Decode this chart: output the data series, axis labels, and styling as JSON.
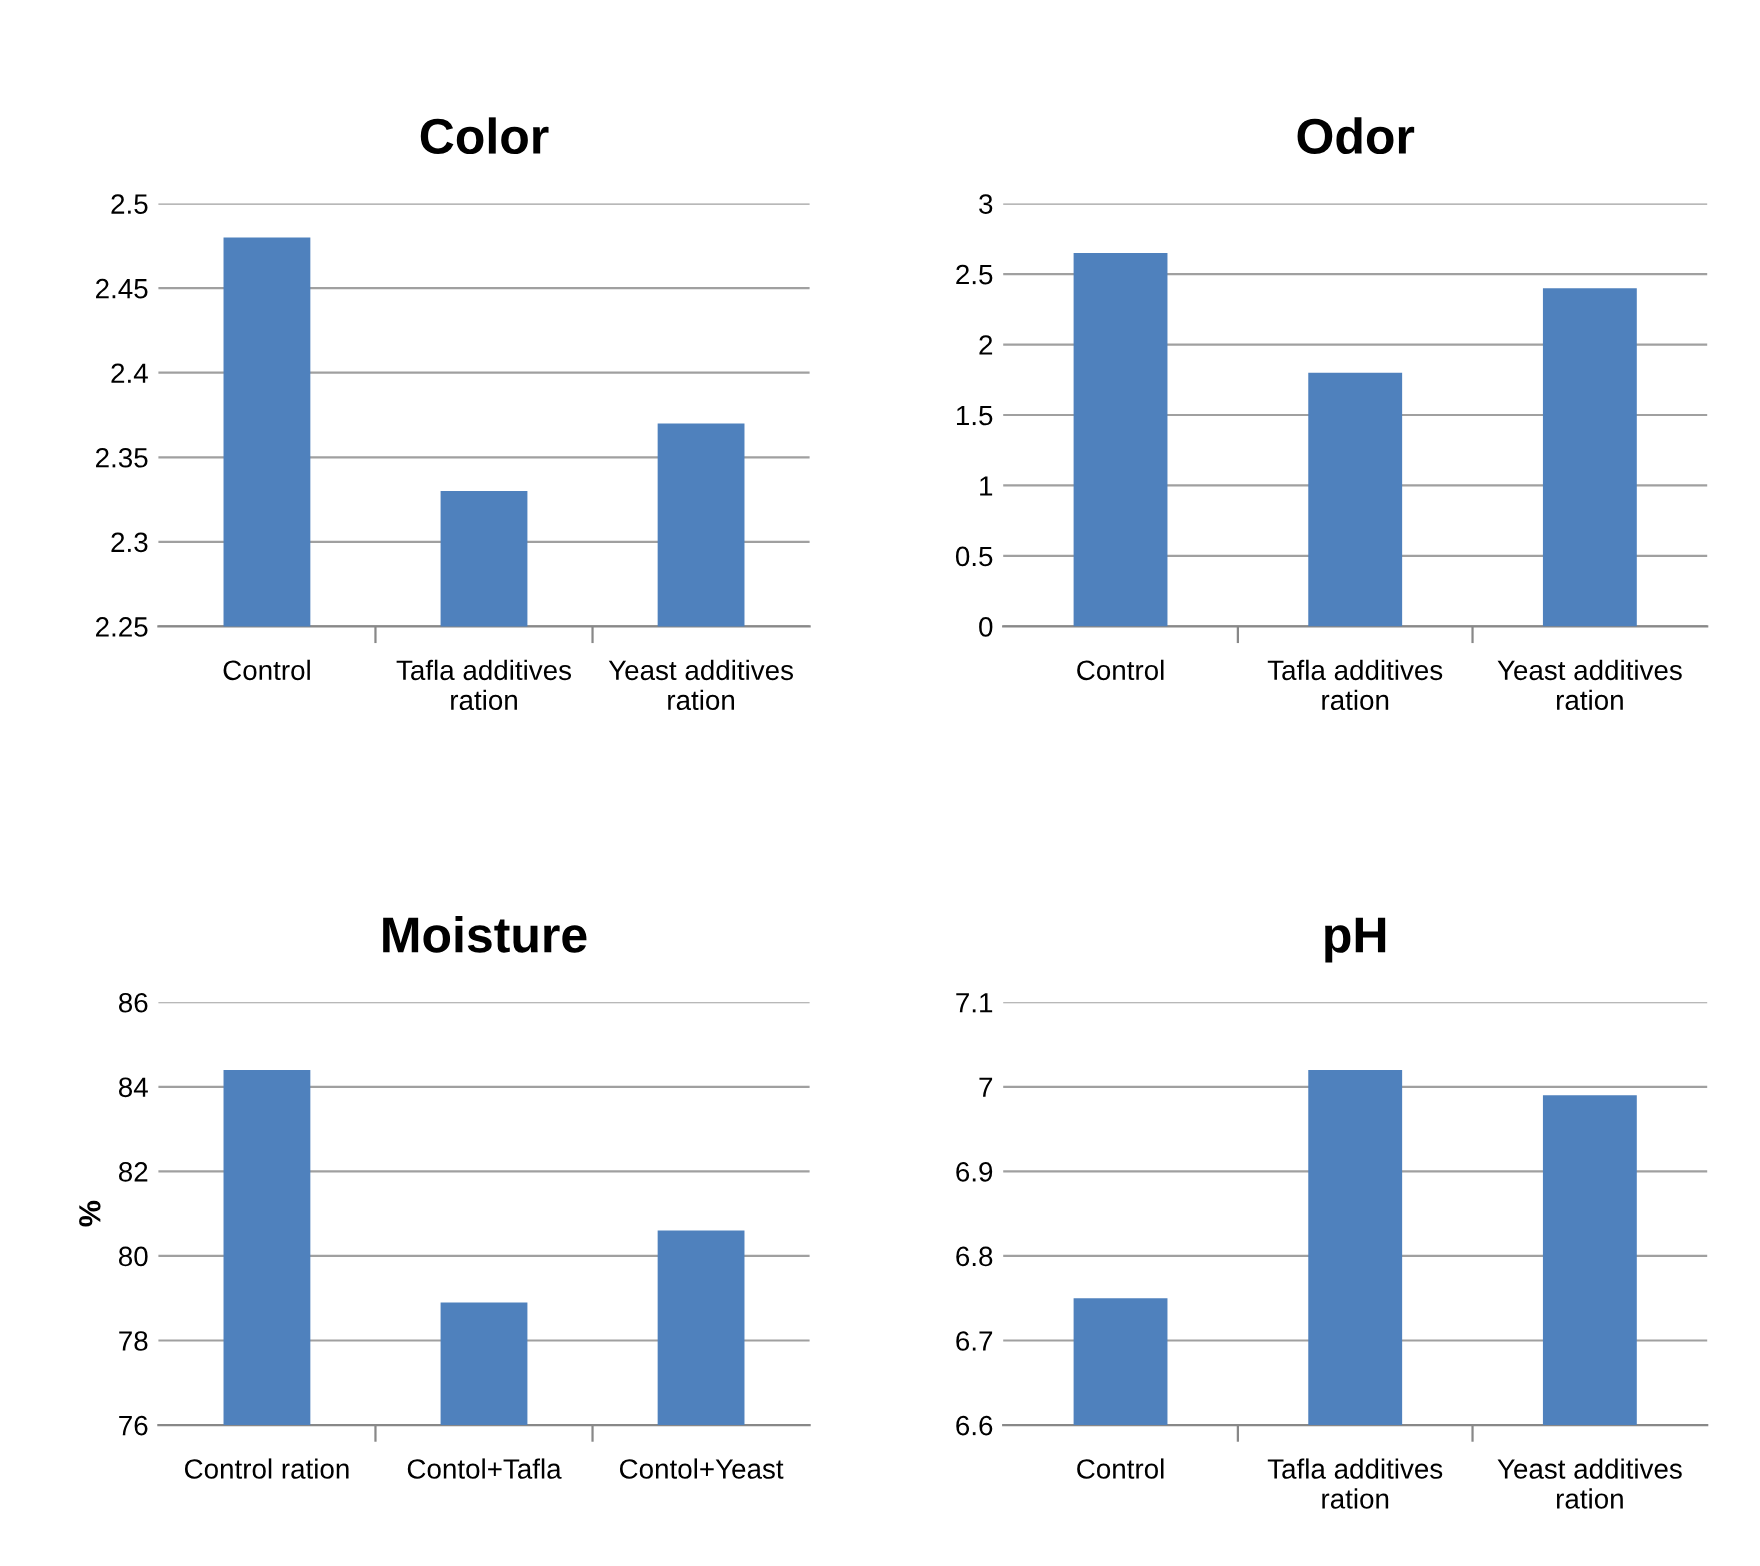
{
  "chart_data": [
    {
      "type": "bar",
      "title": "Color",
      "categories": [
        "Control",
        "Tafla additives ration",
        "Yeast additives ration"
      ],
      "values": [
        2.48,
        2.33,
        2.37
      ],
      "color": "#4f81bd",
      "ylim": [
        2.25,
        2.5
      ],
      "yticks": [
        2.25,
        2.3,
        2.35,
        2.4,
        2.45,
        2.5
      ],
      "grid": "y",
      "legend": false
    },
    {
      "type": "bar",
      "title": "Odor",
      "categories": [
        "Control",
        "Tafla additives ration",
        "Yeast additives ration"
      ],
      "values": [
        2.65,
        1.8,
        2.4
      ],
      "color": "#4f81bd",
      "ylim": [
        0,
        3
      ],
      "yticks": [
        0,
        0.5,
        1,
        1.5,
        2,
        2.5,
        3
      ],
      "grid": "y",
      "legend": false
    },
    {
      "type": "bar",
      "title": "Moisture",
      "ylabel": "%",
      "categories": [
        "Control ration",
        "Contol+Tafla",
        "Contol+Yeast"
      ],
      "values": [
        84.4,
        78.9,
        80.6
      ],
      "color": "#4f81bd",
      "ylim": [
        76,
        86
      ],
      "yticks": [
        76,
        78,
        80,
        82,
        84,
        86
      ],
      "grid": "y",
      "legend": false
    },
    {
      "type": "bar",
      "title": "pH",
      "categories": [
        "Control",
        "Tafla additives ration",
        "Yeast additives ration"
      ],
      "values": [
        6.75,
        7.02,
        6.99
      ],
      "color": "#4f81bd",
      "ylim": [
        6.6,
        7.1
      ],
      "yticks": [
        6.6,
        6.7,
        6.8,
        6.9,
        7,
        7.1
      ],
      "grid": "y",
      "legend": false
    }
  ]
}
